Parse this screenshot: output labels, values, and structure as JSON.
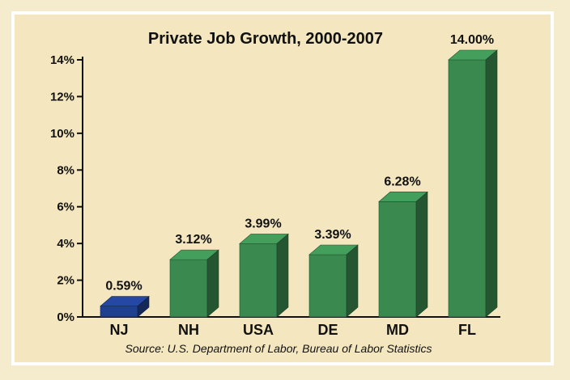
{
  "chart_data": {
    "type": "bar",
    "title": "Private Job Growth, 2000-2007",
    "categories": [
      "NJ",
      "NH",
      "USA",
      "DE",
      "MD",
      "FL"
    ],
    "values": [
      0.59,
      3.12,
      3.99,
      3.39,
      6.28,
      14.0
    ],
    "value_labels": [
      "0.59%",
      "3.12%",
      "3.99%",
      "3.39%",
      "6.28%",
      "14.00%"
    ],
    "yticks": [
      0,
      2,
      4,
      6,
      8,
      10,
      12,
      14
    ],
    "ytick_labels": [
      "0%",
      "2%",
      "4%",
      "6%",
      "8%",
      "10%",
      "12%",
      "14%"
    ],
    "ylim": [
      0,
      14
    ],
    "xlabel": "",
    "ylabel": "",
    "grid": false,
    "bar_colors": [
      "#1f3f8f",
      "#3a8a4f",
      "#3a8a4f",
      "#3a8a4f",
      "#3a8a4f",
      "#3a8a4f"
    ],
    "source": "Source:  U.S. Department of Labor, Bureau of Labor Statistics"
  },
  "colors": {
    "background": "#f4e7bf",
    "green": "#3a8a4f",
    "blue": "#1f3f8f"
  }
}
